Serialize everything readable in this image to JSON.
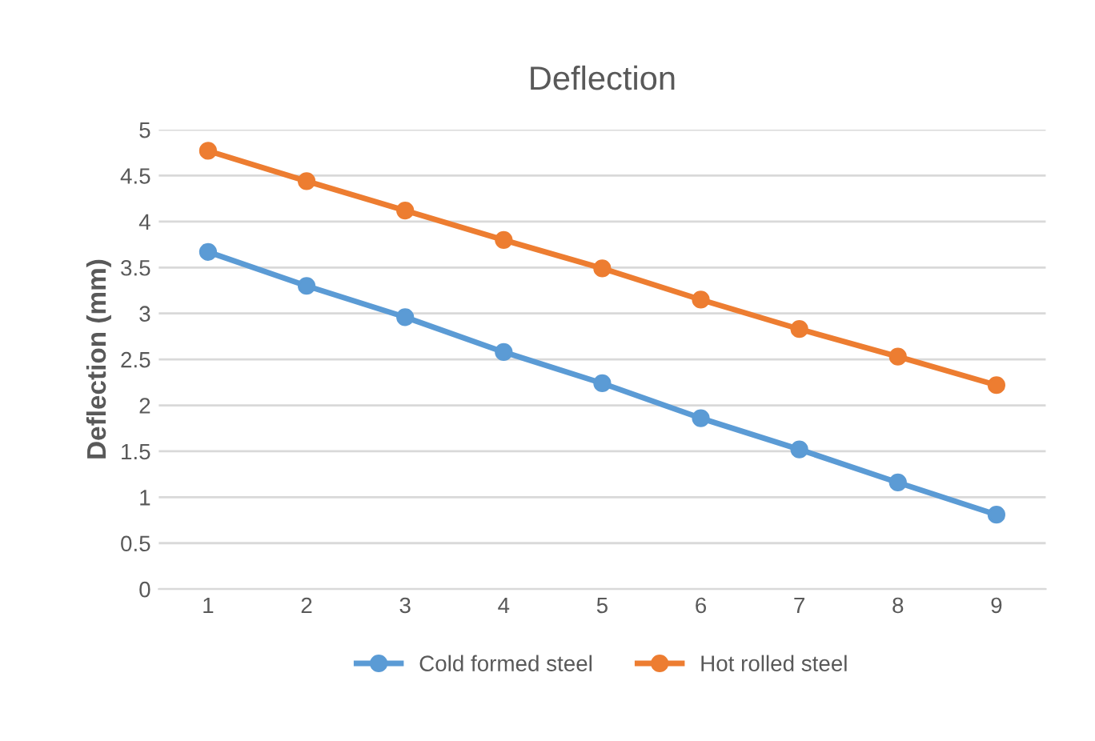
{
  "chart_data": {
    "type": "line",
    "title": "Deflection",
    "ylabel": "Deflection (mm)",
    "categories": [
      "1",
      "2",
      "3",
      "4",
      "5",
      "6",
      "7",
      "8",
      "9"
    ],
    "series": [
      {
        "name": "Cold formed steel",
        "color": "#5b9bd5",
        "values": [
          3.67,
          3.3,
          2.96,
          2.58,
          2.24,
          1.86,
          1.52,
          1.16,
          0.81
        ]
      },
      {
        "name": "Hot rolled steel",
        "color": "#ed7d31",
        "values": [
          4.77,
          4.44,
          4.12,
          3.8,
          3.49,
          3.15,
          2.83,
          2.53,
          2.22
        ]
      }
    ],
    "ylim": [
      0,
      5
    ],
    "yticks": [
      0,
      0.5,
      1,
      1.5,
      2,
      2.5,
      3,
      3.5,
      4,
      4.5,
      5
    ],
    "grid": "y",
    "legend": "bottom",
    "marker": "circle",
    "line_style": "solid"
  }
}
